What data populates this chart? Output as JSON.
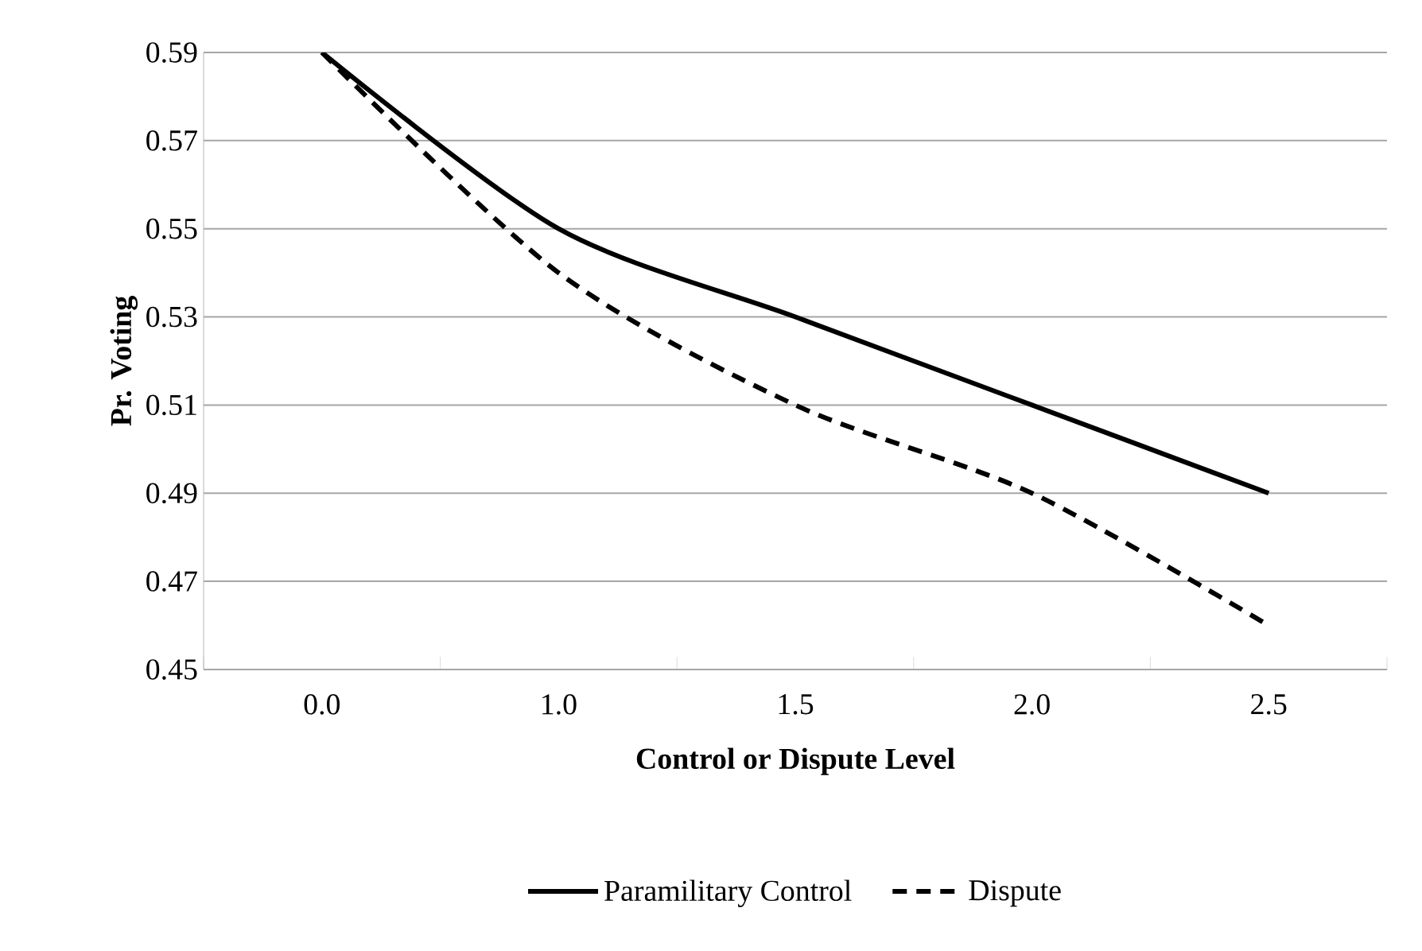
{
  "chart_data": {
    "type": "line",
    "xlabel": "Control or Dispute Level",
    "ylabel": "Pr. Voting",
    "categories": [
      "0.0",
      "1.0",
      "1.5",
      "2.0",
      "2.5"
    ],
    "series": [
      {
        "name": "Paramilitary Control",
        "color": "#000000",
        "line_style": "solid",
        "values": [
          0.59,
          0.55,
          0.53,
          0.51,
          0.49
        ]
      },
      {
        "name": "Dispute",
        "color": "#000000",
        "line_style": "dashed",
        "values": [
          0.59,
          0.54,
          0.51,
          0.49,
          0.46
        ]
      }
    ],
    "ylim": [
      0.45,
      0.59
    ],
    "yticks": [
      0.45,
      0.47,
      0.49,
      0.51,
      0.53,
      0.55,
      0.57,
      0.59
    ],
    "grid": "y",
    "legend": "bottom",
    "marker": "none"
  }
}
